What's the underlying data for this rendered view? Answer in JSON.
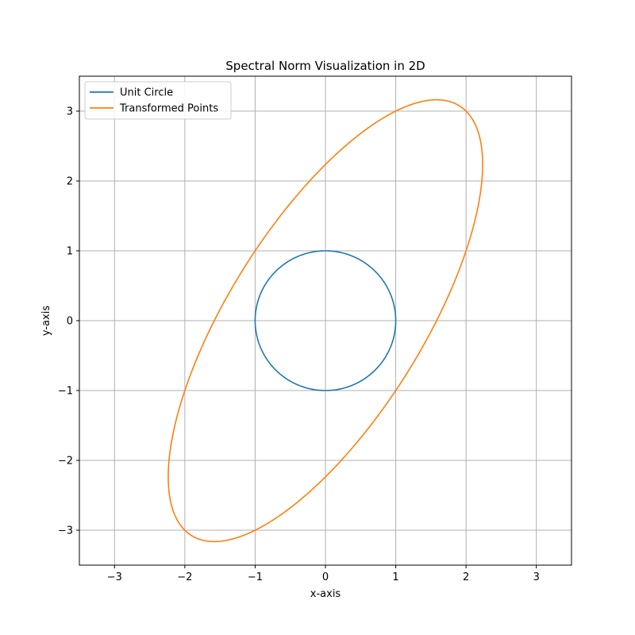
{
  "chart_data": {
    "type": "line",
    "title": "Spectral Norm Visualization in 2D",
    "xlabel": "x-axis",
    "ylabel": "y-axis",
    "xlim": [
      -3.5,
      3.5
    ],
    "ylim": [
      -3.5,
      3.5
    ],
    "xticks": [
      -3,
      -2,
      -1,
      0,
      1,
      2,
      3
    ],
    "yticks": [
      -3,
      -2,
      -1,
      0,
      1,
      2,
      3
    ],
    "xtick_labels": [
      "−3",
      "−2",
      "−1",
      "0",
      "1",
      "2",
      "3"
    ],
    "ytick_labels": [
      "−3",
      "−2",
      "−1",
      "0",
      "1",
      "2",
      "3"
    ],
    "grid": true,
    "legend_position": "top-left",
    "series": [
      {
        "name": "Unit Circle",
        "color": "#1f77b4",
        "shape": "parametric",
        "matrix": [
          [
            1,
            0
          ],
          [
            0,
            1
          ]
        ]
      },
      {
        "name": "Transformed Points",
        "color": "#ff7f0e",
        "shape": "parametric",
        "matrix": [
          [
            2,
            1
          ],
          [
            1,
            3
          ]
        ]
      }
    ]
  }
}
